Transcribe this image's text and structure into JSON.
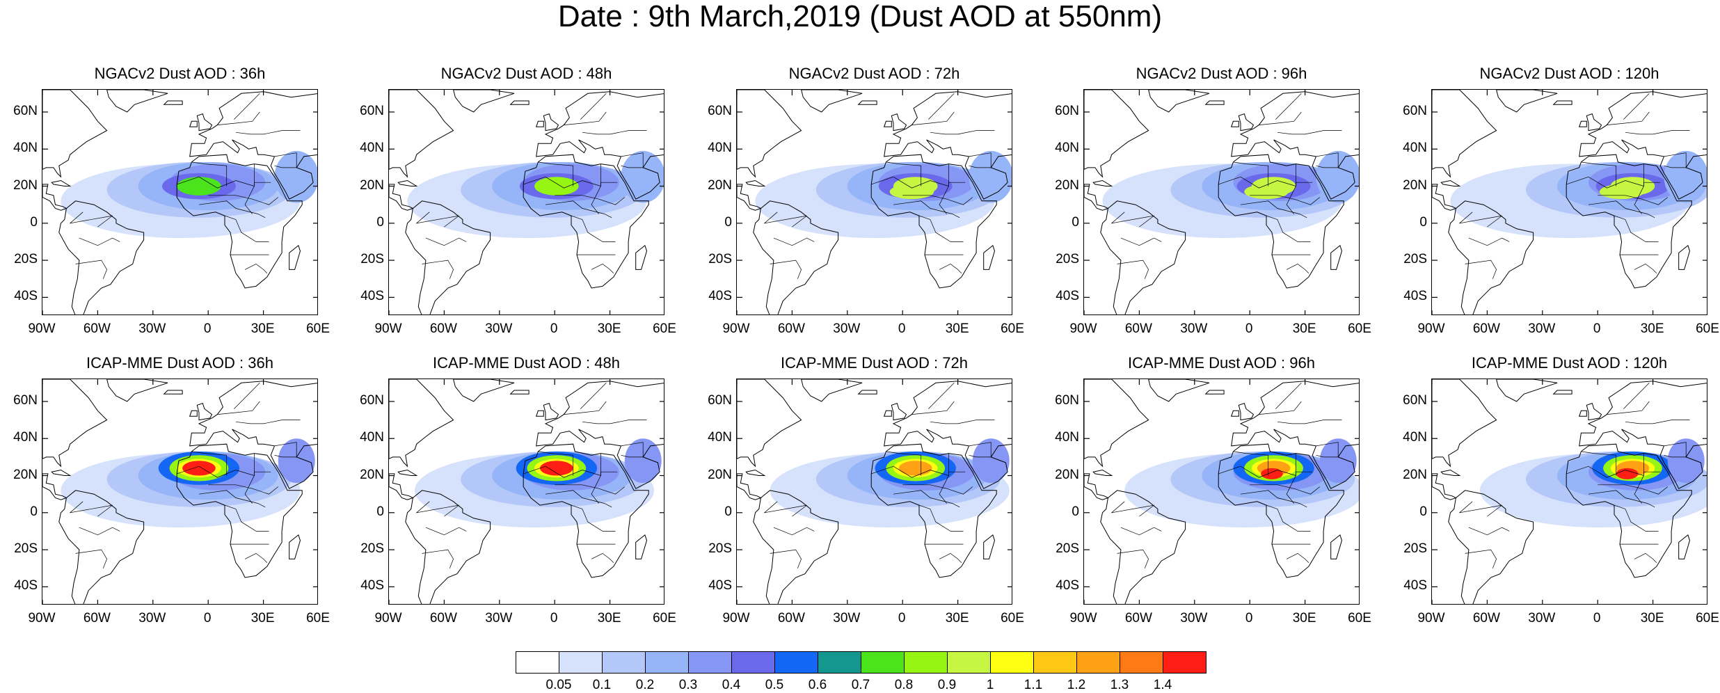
{
  "title": "Date : 9th March,2019 (Dust AOD at 550nm)",
  "lat_labels": [
    "60N",
    "40N",
    "20N",
    "0",
    "20S",
    "40S"
  ],
  "lon_labels": [
    "90W",
    "60W",
    "30W",
    "0",
    "30E",
    "60E"
  ],
  "panels": [
    {
      "title": "NGACv2 Dust AOD : 36h",
      "model": "NGACv2",
      "lead_hours": 36
    },
    {
      "title": "NGACv2 Dust AOD : 48h",
      "model": "NGACv2",
      "lead_hours": 48
    },
    {
      "title": "NGACv2 Dust AOD : 72h",
      "model": "NGACv2",
      "lead_hours": 72
    },
    {
      "title": "NGACv2 Dust AOD : 96h",
      "model": "NGACv2",
      "lead_hours": 96
    },
    {
      "title": "NGACv2 Dust AOD : 120h",
      "model": "NGACv2",
      "lead_hours": 120
    },
    {
      "title": "ICAP-MME Dust AOD : 36h",
      "model": "ICAP-MME",
      "lead_hours": 36
    },
    {
      "title": "ICAP-MME Dust AOD : 48h",
      "model": "ICAP-MME",
      "lead_hours": 48
    },
    {
      "title": "ICAP-MME Dust AOD : 72h",
      "model": "ICAP-MME",
      "lead_hours": 72
    },
    {
      "title": "ICAP-MME Dust AOD : 96h",
      "model": "ICAP-MME",
      "lead_hours": 96
    },
    {
      "title": "ICAP-MME Dust AOD : 120h",
      "model": "ICAP-MME",
      "lead_hours": 120
    }
  ],
  "colorbar": {
    "labels": [
      "0.05",
      "0.1",
      "0.2",
      "0.3",
      "0.4",
      "0.5",
      "0.6",
      "0.7",
      "0.8",
      "0.9",
      "1",
      "1.1",
      "1.2",
      "1.3",
      "1.4"
    ],
    "colors": [
      "#ffffff",
      "#d6e2fb",
      "#b4c7f9",
      "#96b4f8",
      "#8696f4",
      "#6a69ec",
      "#1467f5",
      "#13978f",
      "#4be31c",
      "#96f513",
      "#c6f542",
      "#ffff14",
      "#ffc814",
      "#ffa114",
      "#ff7a14",
      "#ff1e14"
    ]
  }
}
